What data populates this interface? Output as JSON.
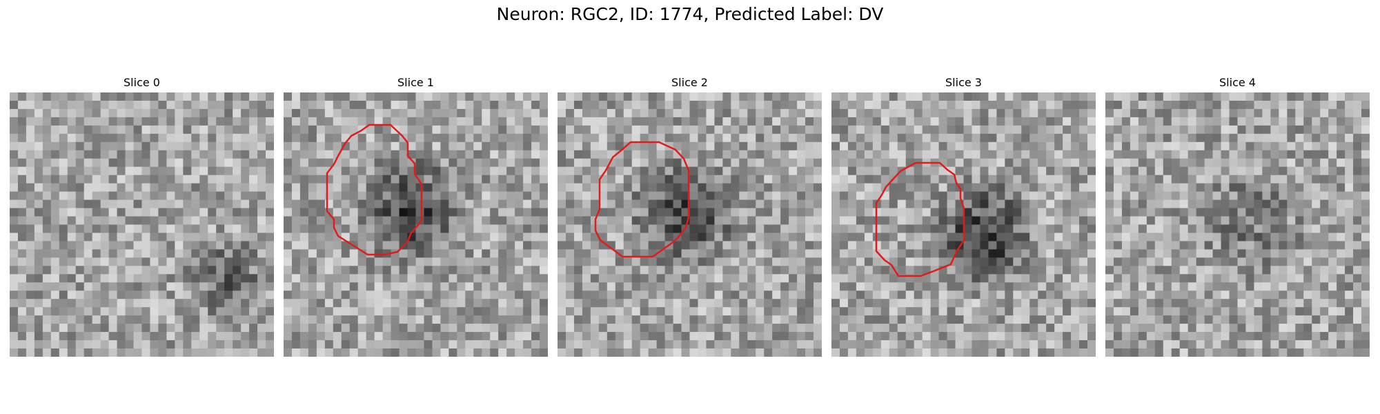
{
  "figure": {
    "title": "Neuron: RGC2, ID: 1774, Predicted Label: DV"
  },
  "panels": [
    {
      "title": "Slice 0",
      "has_contour": false
    },
    {
      "title": "Slice 1",
      "has_contour": true
    },
    {
      "title": "Slice 2",
      "has_contour": true
    },
    {
      "title": "Slice 3",
      "has_contour": true
    },
    {
      "title": "Slice 4",
      "has_contour": false
    }
  ],
  "colors": {
    "contour": "#e31a1c",
    "background": "#ffffff"
  }
}
